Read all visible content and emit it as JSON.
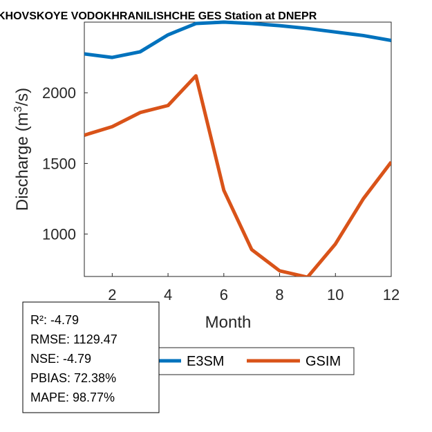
{
  "chart_data": {
    "type": "line",
    "title": "KHOVSKOYE VODOKHRANILISHCHE GES  Station at  DNEPR",
    "xlabel": "Month",
    "ylabel": "Discharge (m3/s)",
    "ylabel_parts": {
      "prefix": "Discharge (m",
      "sup": "3",
      "suffix": "/s)"
    },
    "xlim": [
      1,
      12
    ],
    "ylim": [
      700,
      2500
    ],
    "xticks": [
      2,
      4,
      6,
      8,
      10,
      12
    ],
    "yticks": [
      1000,
      1500,
      2000
    ],
    "x": [
      1,
      2,
      3,
      4,
      5,
      6,
      7,
      8,
      9,
      10,
      11,
      12
    ],
    "series": [
      {
        "name": "E3SM",
        "color": "#0072BD",
        "values": [
          2275,
          2250,
          2290,
          2410,
          2490,
          2500,
          2490,
          2475,
          2455,
          2430,
          2405,
          2370
        ]
      },
      {
        "name": "GSIM",
        "color": "#D95319",
        "values": [
          1700,
          1760,
          1860,
          1910,
          2120,
          1310,
          890,
          740,
          695,
          930,
          1250,
          1510
        ]
      }
    ],
    "legend": {
      "placement": "bottom"
    },
    "grid": false
  },
  "stats": [
    "R²: -4.79",
    "RMSE: 1129.47",
    "NSE: -4.79",
    "PBIAS: 72.38%",
    "MAPE: 98.77%"
  ]
}
